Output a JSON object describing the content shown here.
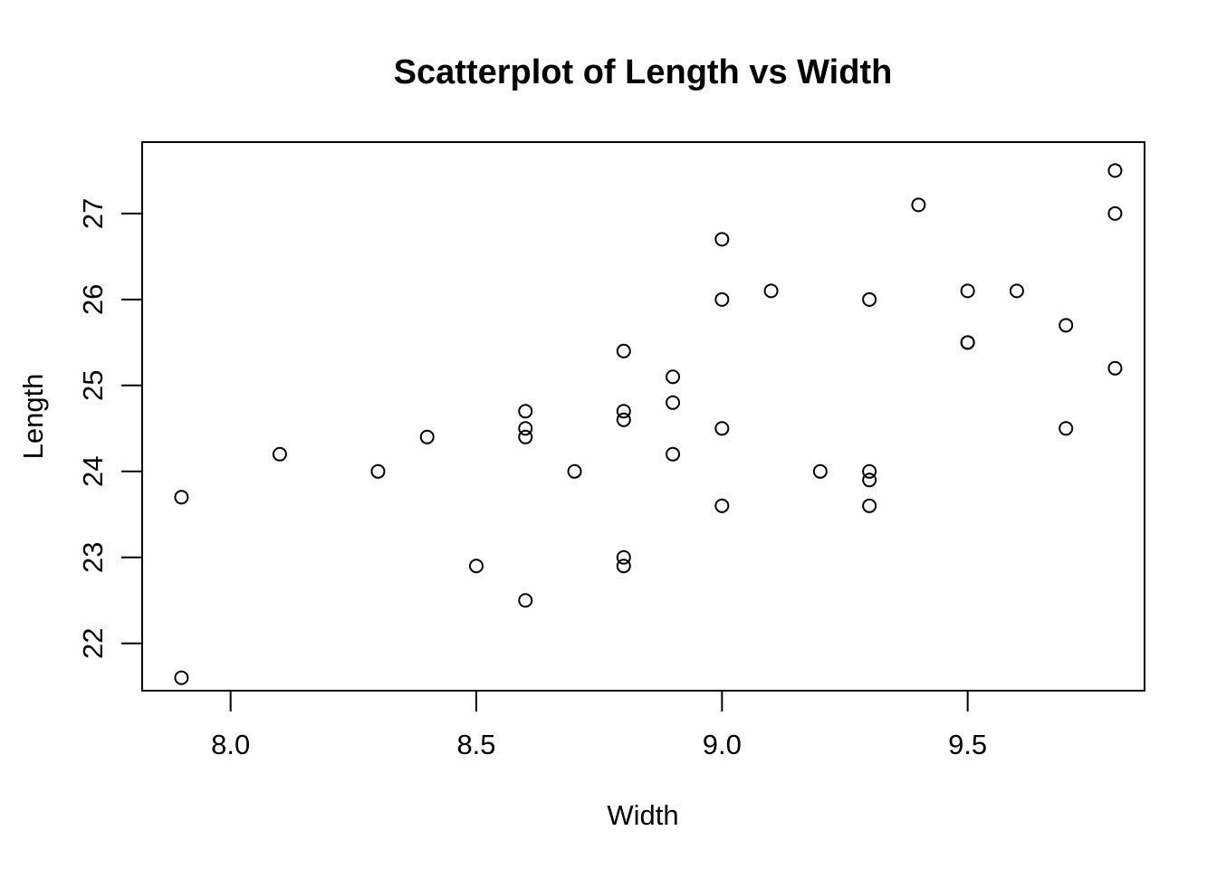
{
  "chart_data": {
    "type": "scatter",
    "title": "Scatterplot of Length vs Width",
    "xlabel": "Width",
    "ylabel": "Length",
    "xlim": [
      7.82,
      9.86
    ],
    "ylim": [
      21.45,
      27.83
    ],
    "x_ticks": [
      8.0,
      8.5,
      9.0,
      9.5
    ],
    "x_tick_labels": [
      "8.0",
      "8.5",
      "9.0",
      "9.5"
    ],
    "y_ticks": [
      22,
      23,
      24,
      25,
      26,
      27
    ],
    "y_tick_labels": [
      "22",
      "23",
      "24",
      "25",
      "26",
      "27"
    ],
    "grid": false,
    "legend": "none",
    "marker": "open-circle",
    "color": "#000000",
    "series": [
      {
        "points": [
          [
            7.9,
            23.7
          ],
          [
            7.9,
            21.6
          ],
          [
            8.1,
            24.2
          ],
          [
            8.3,
            24.0
          ],
          [
            8.4,
            24.4
          ],
          [
            8.5,
            22.9
          ],
          [
            8.6,
            24.7
          ],
          [
            8.6,
            24.5
          ],
          [
            8.6,
            24.4
          ],
          [
            8.6,
            22.5
          ],
          [
            8.7,
            24.0
          ],
          [
            8.8,
            25.4
          ],
          [
            8.8,
            24.7
          ],
          [
            8.8,
            24.6
          ],
          [
            8.8,
            23.0
          ],
          [
            8.8,
            22.9
          ],
          [
            8.9,
            25.1
          ],
          [
            8.9,
            24.8
          ],
          [
            8.9,
            24.2
          ],
          [
            9.0,
            26.7
          ],
          [
            9.0,
            26.0
          ],
          [
            9.0,
            24.5
          ],
          [
            9.0,
            23.6
          ],
          [
            9.1,
            26.1
          ],
          [
            9.2,
            24.0
          ],
          [
            9.3,
            26.0
          ],
          [
            9.3,
            24.0
          ],
          [
            9.3,
            23.9
          ],
          [
            9.3,
            23.6
          ],
          [
            9.4,
            27.1
          ],
          [
            9.5,
            26.1
          ],
          [
            9.5,
            25.5
          ],
          [
            9.5,
            25.5
          ],
          [
            9.6,
            26.1
          ],
          [
            9.7,
            25.7
          ],
          [
            9.7,
            24.5
          ],
          [
            9.8,
            27.5
          ],
          [
            9.8,
            27.0
          ],
          [
            9.8,
            25.2
          ]
        ]
      }
    ]
  }
}
